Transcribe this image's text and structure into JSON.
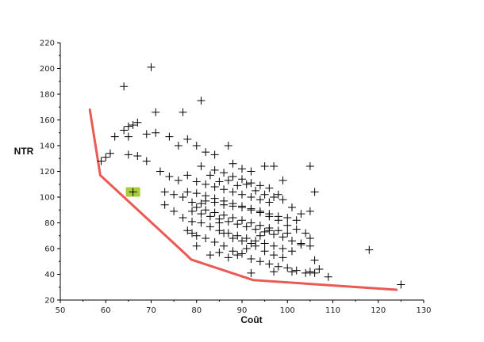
{
  "chart_data": {
    "type": "scatter",
    "xlabel": "Coût",
    "ylabel": "NTR",
    "xlim": [
      50,
      130
    ],
    "ylim": [
      20,
      220
    ],
    "xticks": [
      50,
      60,
      70,
      80,
      90,
      100,
      110,
      120,
      130
    ],
    "yticks": [
      20,
      40,
      60,
      80,
      100,
      120,
      140,
      160,
      180,
      200,
      220
    ],
    "grid": false,
    "marker": "+",
    "colors": {
      "points": "#000000",
      "frontier": "#e8483f",
      "highlight": "#a8cc3c"
    },
    "points": [
      [
        64,
        186
      ],
      [
        70,
        201
      ],
      [
        81,
        175
      ],
      [
        71,
        166
      ],
      [
        77,
        166
      ],
      [
        67,
        158
      ],
      [
        66,
        156
      ],
      [
        65,
        155
      ],
      [
        64,
        152
      ],
      [
        62,
        147
      ],
      [
        60,
        131
      ],
      [
        59,
        128
      ],
      [
        65,
        147
      ],
      [
        69,
        149
      ],
      [
        71,
        150
      ],
      [
        74,
        147
      ],
      [
        76,
        140
      ],
      [
        78,
        145
      ],
      [
        80,
        140
      ],
      [
        82,
        135
      ],
      [
        84,
        133
      ],
      [
        87,
        140
      ],
      [
        88,
        126
      ],
      [
        90,
        122
      ],
      [
        92,
        120
      ],
      [
        95,
        124
      ],
      [
        97,
        124
      ],
      [
        99,
        113
      ],
      [
        105,
        124
      ],
      [
        61,
        134
      ],
      [
        65,
        133
      ],
      [
        67,
        132
      ],
      [
        69,
        128
      ],
      [
        72,
        120
      ],
      [
        74,
        116
      ],
      [
        76,
        113
      ],
      [
        78,
        117
      ],
      [
        80,
        112
      ],
      [
        81,
        124
      ],
      [
        83,
        117
      ],
      [
        85,
        112
      ],
      [
        87,
        113
      ],
      [
        89,
        109
      ],
      [
        91,
        110
      ],
      [
        93,
        105
      ],
      [
        95,
        102
      ],
      [
        97,
        100
      ],
      [
        99,
        98
      ],
      [
        101,
        92
      ],
      [
        103,
        87
      ],
      [
        106,
        104
      ],
      [
        73,
        104
      ],
      [
        75,
        102
      ],
      [
        77,
        100
      ],
      [
        79,
        96
      ],
      [
        81,
        95
      ],
      [
        82,
        97
      ],
      [
        84,
        96
      ],
      [
        86,
        94
      ],
      [
        88,
        93
      ],
      [
        90,
        92
      ],
      [
        92,
        90
      ],
      [
        94,
        88
      ],
      [
        96,
        85
      ],
      [
        98,
        82
      ],
      [
        100,
        78
      ],
      [
        102,
        75
      ],
      [
        104,
        72
      ],
      [
        105,
        89
      ],
      [
        73,
        94
      ],
      [
        75,
        89
      ],
      [
        77,
        84
      ],
      [
        79,
        81
      ],
      [
        81,
        80
      ],
      [
        83,
        77
      ],
      [
        85,
        74
      ],
      [
        87,
        72
      ],
      [
        89,
        70
      ],
      [
        91,
        68
      ],
      [
        93,
        66
      ],
      [
        95,
        64
      ],
      [
        97,
        62
      ],
      [
        99,
        60
      ],
      [
        101,
        58
      ],
      [
        103,
        63
      ],
      [
        105,
        68
      ],
      [
        79,
        72
      ],
      [
        80,
        70
      ],
      [
        82,
        68
      ],
      [
        84,
        65
      ],
      [
        86,
        62
      ],
      [
        88,
        58
      ],
      [
        90,
        56
      ],
      [
        92,
        52
      ],
      [
        94,
        50
      ],
      [
        96,
        48
      ],
      [
        98,
        46
      ],
      [
        100,
        45
      ],
      [
        102,
        43
      ],
      [
        104,
        41
      ],
      [
        106,
        41
      ],
      [
        107,
        44
      ],
      [
        109,
        38
      ],
      [
        125,
        32
      ],
      [
        118,
        59
      ],
      [
        106,
        51
      ],
      [
        92,
        41
      ],
      [
        97,
        42
      ],
      [
        101,
        42
      ],
      [
        105,
        42
      ],
      [
        80,
        62
      ],
      [
        78,
        74
      ],
      [
        79,
        89
      ],
      [
        81,
        87
      ],
      [
        83,
        85
      ],
      [
        85,
        83
      ],
      [
        87,
        81
      ],
      [
        89,
        79
      ],
      [
        91,
        77
      ],
      [
        93,
        75
      ],
      [
        95,
        73
      ],
      [
        97,
        71
      ],
      [
        99,
        69
      ],
      [
        101,
        66
      ],
      [
        103,
        64
      ],
      [
        105,
        62
      ],
      [
        78,
        104
      ],
      [
        80,
        103
      ],
      [
        82,
        101
      ],
      [
        84,
        99
      ],
      [
        86,
        97
      ],
      [
        88,
        95
      ],
      [
        90,
        93
      ],
      [
        92,
        91
      ],
      [
        94,
        89
      ],
      [
        96,
        87
      ],
      [
        98,
        85
      ],
      [
        100,
        84
      ],
      [
        102,
        82
      ],
      [
        84,
        121
      ],
      [
        86,
        119
      ],
      [
        88,
        116
      ],
      [
        90,
        114
      ],
      [
        92,
        111
      ],
      [
        94,
        109
      ],
      [
        96,
        107
      ],
      [
        98,
        102
      ],
      [
        80,
        92
      ],
      [
        82,
        90
      ],
      [
        84,
        88
      ],
      [
        86,
        86
      ],
      [
        88,
        84
      ],
      [
        90,
        82
      ],
      [
        92,
        80
      ],
      [
        94,
        78
      ],
      [
        96,
        76
      ],
      [
        98,
        74
      ],
      [
        100,
        72
      ],
      [
        82,
        110
      ],
      [
        84,
        108
      ],
      [
        86,
        106
      ],
      [
        88,
        104
      ],
      [
        90,
        102
      ],
      [
        92,
        100
      ],
      [
        94,
        98
      ],
      [
        96,
        96
      ],
      [
        83,
        55
      ],
      [
        85,
        57
      ],
      [
        87,
        53
      ],
      [
        89,
        55
      ],
      [
        91,
        60
      ],
      [
        93,
        62
      ],
      [
        95,
        58
      ],
      [
        97,
        55
      ],
      [
        99,
        53
      ],
      [
        85,
        80
      ],
      [
        86,
        72
      ],
      [
        88,
        68
      ],
      [
        90,
        66
      ],
      [
        92,
        64
      ],
      [
        94,
        70
      ],
      [
        96,
        74
      ],
      [
        66,
        104
      ]
    ],
    "frontier": [
      [
        56.5,
        168
      ],
      [
        58.8,
        117
      ],
      [
        77.8,
        55
      ],
      [
        78.8,
        51.5
      ],
      [
        92.5,
        35.5
      ],
      [
        124,
        28
      ]
    ],
    "highlighted_point": [
      66,
      104
    ]
  }
}
